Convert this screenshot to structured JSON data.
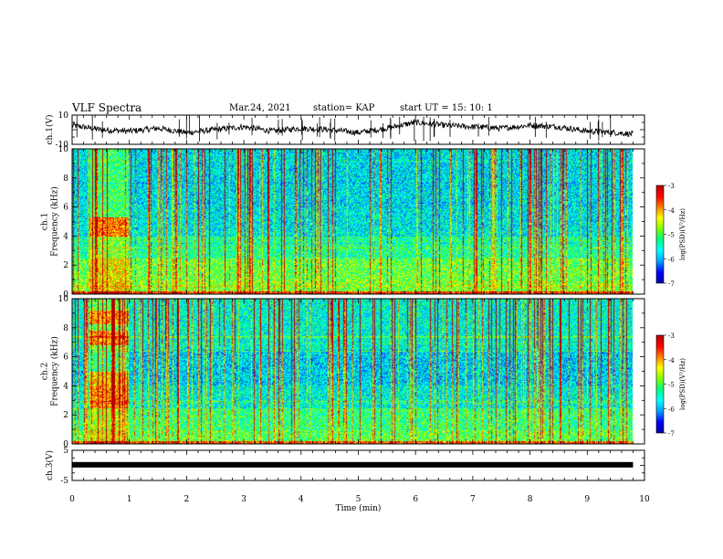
{
  "header": {
    "title": "VLF Spectra",
    "date": "Mar.24, 2021",
    "station": "station= KAP",
    "start": "start  UT =   15: 10: 1"
  },
  "chart_data": [
    {
      "id": "ch1-waveform",
      "type": "line",
      "ylabel": "ch.1(V)",
      "ylim": [
        -10,
        10
      ],
      "yticks": [
        "10",
        "-10"
      ],
      "xlim": [
        0,
        10
      ],
      "note_series": "noisy waveform roughly between -6 and +7 V, present from 0 to ~9.8 min",
      "x": [
        0,
        0.5,
        1.0,
        1.5,
        2.0,
        2.5,
        3.0,
        3.5,
        4.0,
        4.5,
        5.0,
        5.5,
        6.0,
        6.5,
        7.0,
        7.5,
        8.0,
        8.5,
        9.0,
        9.5,
        9.8
      ],
      "y": [
        3,
        0,
        -1,
        1,
        -2,
        0,
        2,
        -1,
        1,
        0,
        -2,
        1,
        5,
        3,
        2,
        1,
        3,
        2,
        -1,
        -2,
        -3
      ]
    },
    {
      "id": "ch1-spectrogram",
      "type": "heatmap",
      "ylabel": "ch.1\nFrequency (kHz)",
      "ylim": [
        0,
        10
      ],
      "yticks": [
        "0",
        "2",
        "4",
        "6",
        "8",
        "10"
      ],
      "xlim": [
        0,
        10
      ],
      "colorbar": {
        "label": "log(PSD)(V²/Hz)",
        "range": [
          -7,
          -3
        ],
        "ticks": [
          "-3",
          "-4",
          "-5",
          "-6",
          "-7"
        ]
      }
    },
    {
      "id": "ch2-spectrogram",
      "type": "heatmap",
      "ylabel": "ch.2\nFrequency (kHz)",
      "ylim": [
        0,
        10
      ],
      "yticks": [
        "0",
        "2",
        "4",
        "6",
        "8",
        "10"
      ],
      "xlim": [
        0,
        10
      ],
      "colorbar": {
        "label": "log(PSD)(V²/Hz)",
        "range": [
          -7,
          -3
        ],
        "ticks": [
          "-3",
          "-4",
          "-5",
          "-6",
          "-7"
        ]
      }
    },
    {
      "id": "ch3-waveform",
      "type": "line",
      "ylabel": "ch.3(V)",
      "ylim": [
        -5,
        5
      ],
      "yticks": [
        "5",
        "-5"
      ],
      "xlim": [
        0,
        10
      ],
      "x": [
        0,
        9.8
      ],
      "y": [
        0.2,
        0.2
      ]
    }
  ],
  "xaxis": {
    "label": "Time (min)",
    "ticks": [
      "0",
      "1",
      "2",
      "3",
      "4",
      "5",
      "6",
      "7",
      "8",
      "9",
      "10"
    ]
  },
  "colors": {
    "colormap": [
      "#0000a0",
      "#0000ff",
      "#00a0ff",
      "#00ffff",
      "#00ff80",
      "#80ff00",
      "#ffff00",
      "#ff8000",
      "#ff0000",
      "#b00000"
    ]
  }
}
